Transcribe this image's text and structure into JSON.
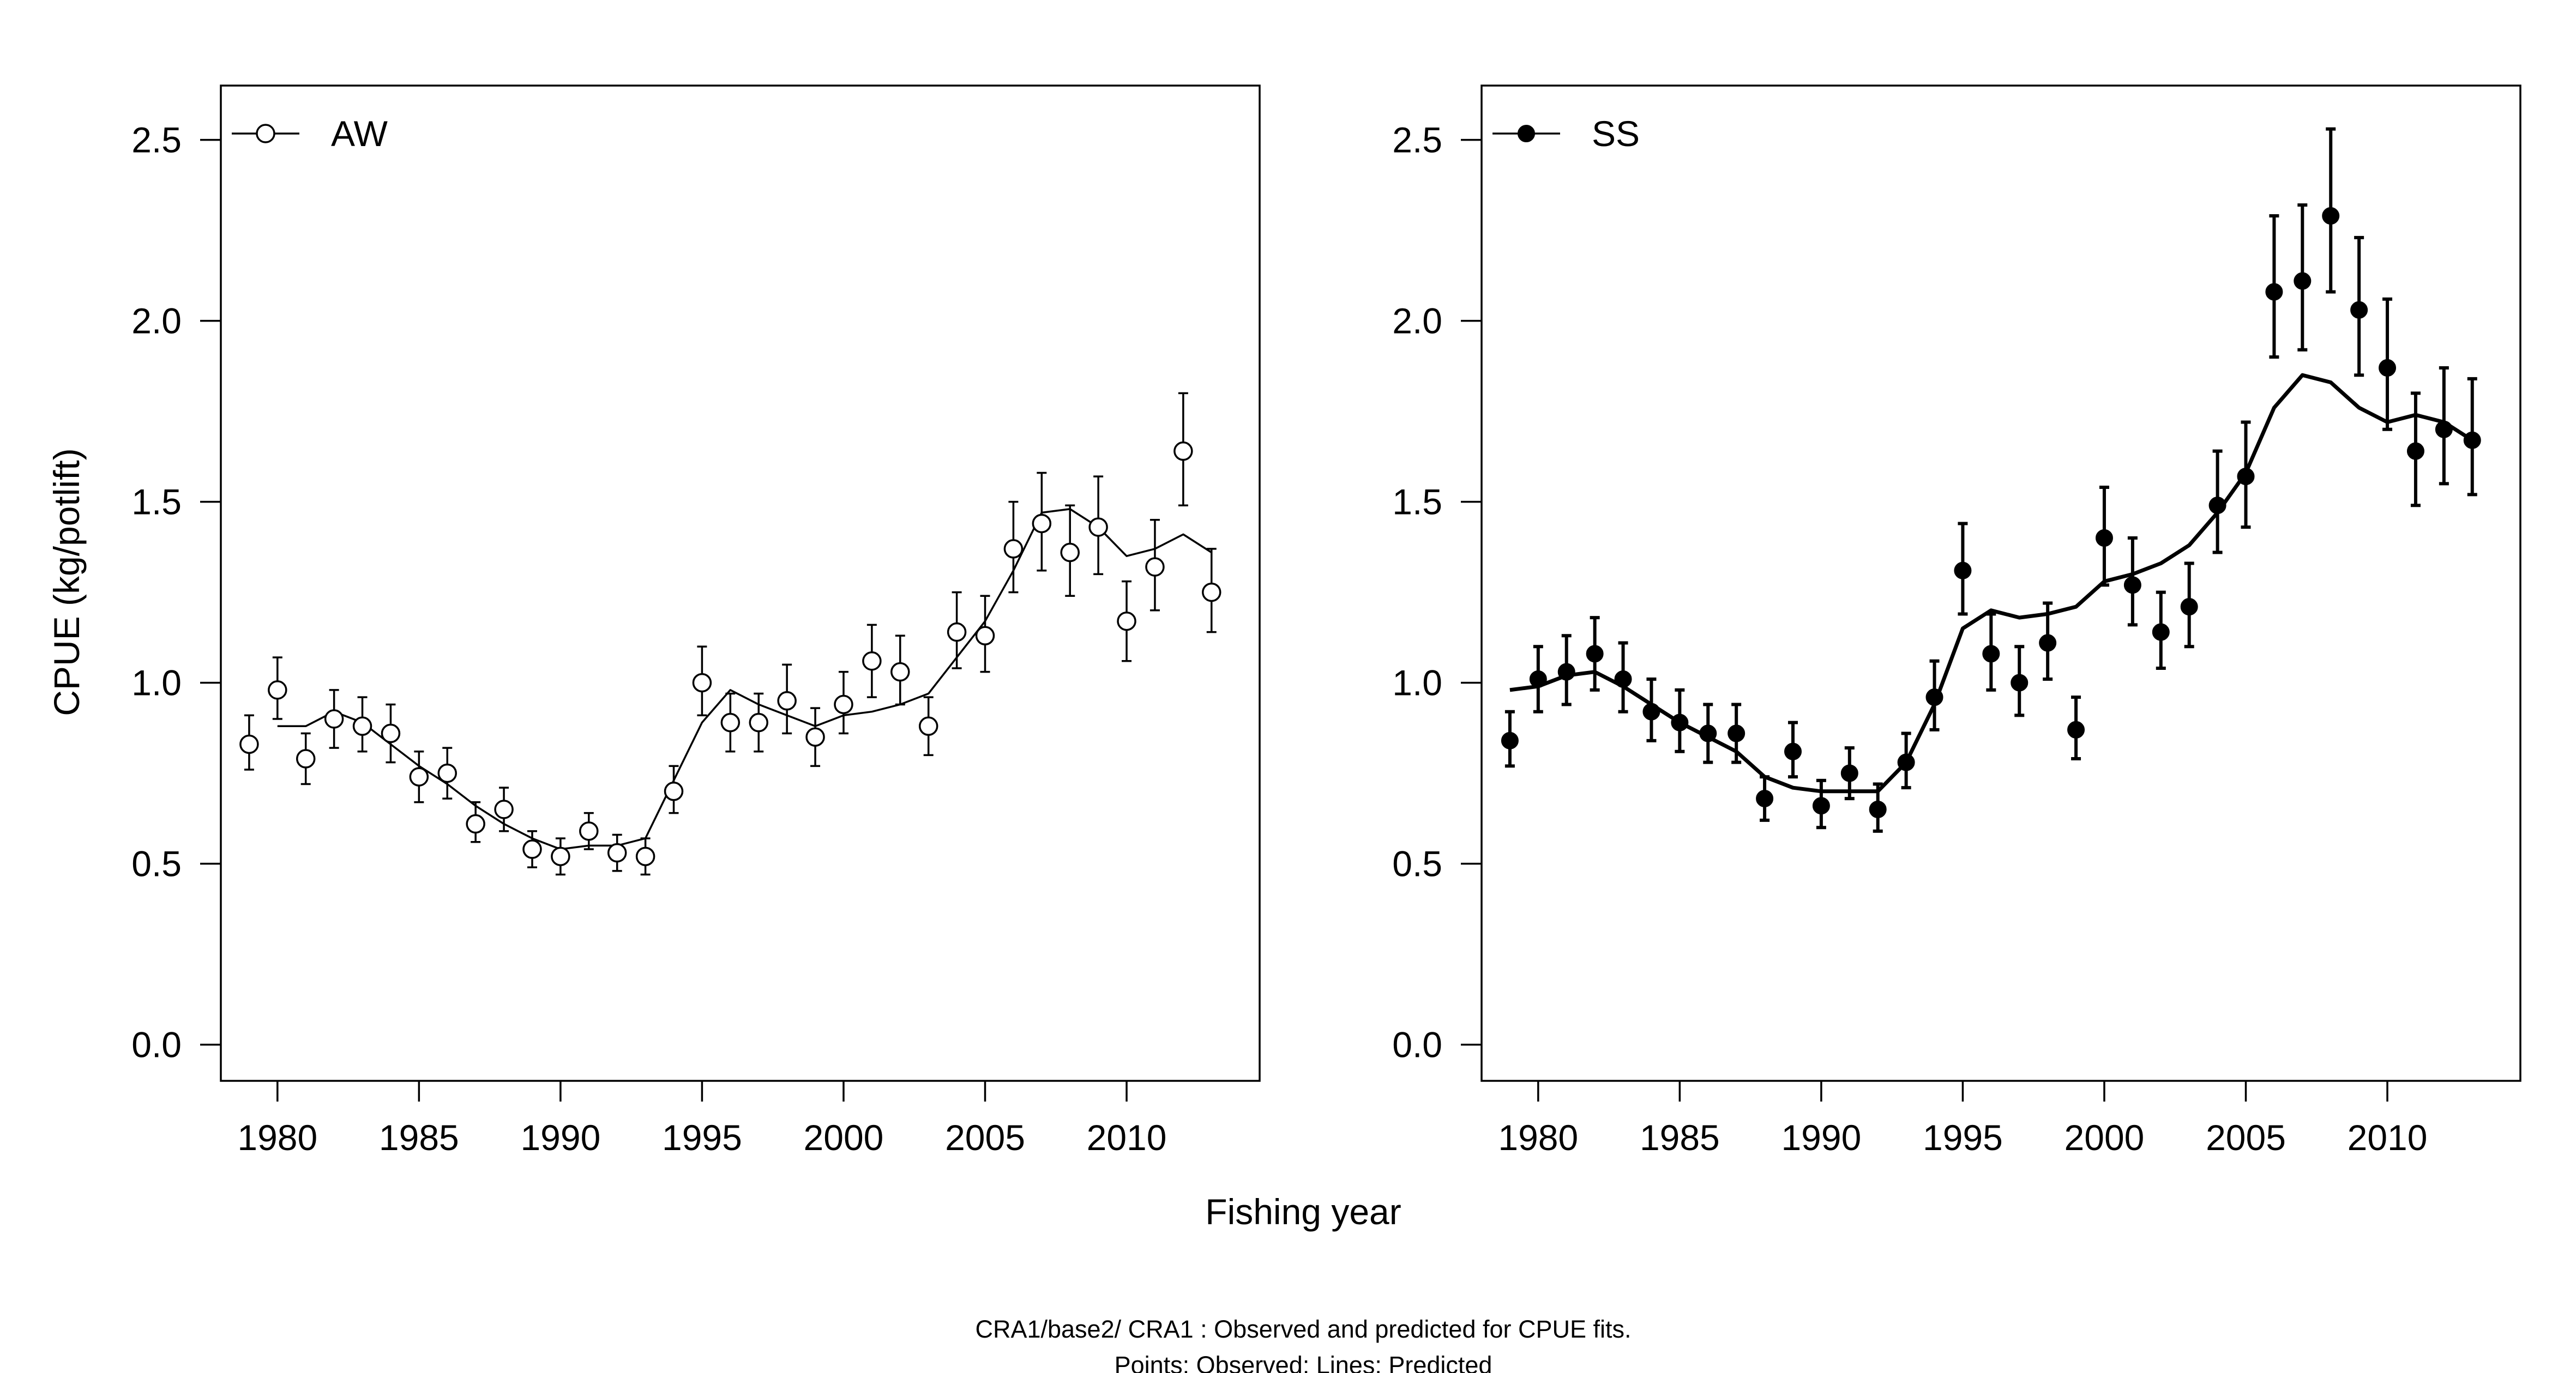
{
  "figure": {
    "xlabel": "Fishing year",
    "ylabel": "CPUE (kg/potlift)",
    "caption_line1": "CRA1/base2/   CRA1 : Observed and predicted for CPUE fits.",
    "caption_line2": "Points: Observed; Lines: Predicted"
  },
  "chart_data": [
    {
      "type": "scatter",
      "panel": "left",
      "legend": "AW",
      "legend_position": "top-left",
      "marker": "open-circle",
      "line_style": "thin",
      "xlim": [
        1978,
        2014.7
      ],
      "ylim": [
        -0.1,
        2.65
      ],
      "x_ticks": [
        1980,
        1985,
        1990,
        1995,
        2000,
        2005,
        2010
      ],
      "x_tick_labels": [
        "1980",
        "1985",
        "1990",
        "1995",
        "2000",
        "2005",
        "2010"
      ],
      "y_ticks": [
        0.0,
        0.5,
        1.0,
        1.5,
        2.0,
        2.5
      ],
      "y_tick_labels": [
        "0.0",
        "0.5",
        "1.0",
        "1.5",
        "2.0",
        "2.5"
      ],
      "x": [
        1979,
        1980,
        1981,
        1982,
        1983,
        1984,
        1985,
        1986,
        1987,
        1988,
        1989,
        1990,
        1991,
        1992,
        1993,
        1994,
        1995,
        1996,
        1997,
        1998,
        1999,
        2000,
        2001,
        2002,
        2003,
        2004,
        2005,
        2006,
        2007,
        2008,
        2009,
        2010,
        2011,
        2012,
        2013
      ],
      "observed": [
        0.83,
        0.98,
        0.79,
        0.9,
        0.88,
        0.86,
        0.74,
        0.75,
        0.61,
        0.65,
        0.54,
        0.52,
        0.59,
        0.53,
        0.52,
        0.7,
        1.0,
        0.89,
        0.89,
        0.95,
        0.85,
        0.94,
        1.06,
        1.03,
        0.88,
        1.14,
        1.13,
        1.37,
        1.44,
        1.36,
        1.43,
        1.17,
        1.32,
        1.64,
        1.25
      ],
      "err_lower": [
        0.76,
        0.9,
        0.72,
        0.82,
        0.81,
        0.78,
        0.67,
        0.68,
        0.56,
        0.59,
        0.49,
        0.47,
        0.54,
        0.48,
        0.47,
        0.64,
        0.91,
        0.81,
        0.81,
        0.86,
        0.77,
        0.86,
        0.96,
        0.94,
        0.8,
        1.04,
        1.03,
        1.25,
        1.31,
        1.24,
        1.3,
        1.06,
        1.2,
        1.49,
        1.14
      ],
      "err_upper": [
        0.91,
        1.07,
        0.86,
        0.98,
        0.96,
        0.94,
        0.81,
        0.82,
        0.67,
        0.71,
        0.59,
        0.57,
        0.64,
        0.58,
        0.57,
        0.77,
        1.1,
        0.97,
        0.97,
        1.05,
        0.93,
        1.03,
        1.16,
        1.13,
        0.96,
        1.25,
        1.24,
        1.5,
        1.58,
        1.49,
        1.57,
        1.28,
        1.45,
        1.8,
        1.37
      ],
      "predicted": [
        null,
        0.88,
        0.88,
        0.92,
        0.89,
        0.83,
        0.77,
        0.72,
        0.66,
        0.61,
        0.57,
        0.54,
        0.55,
        0.55,
        0.57,
        0.73,
        0.89,
        0.98,
        0.94,
        0.91,
        0.88,
        0.91,
        0.92,
        0.94,
        0.97,
        1.07,
        1.17,
        1.31,
        1.47,
        1.48,
        1.43,
        1.35,
        1.37,
        1.41,
        1.36
      ]
    },
    {
      "type": "scatter",
      "panel": "right",
      "legend": "SS",
      "legend_position": "top-left",
      "marker": "filled-circle",
      "line_style": "thick",
      "xlim": [
        1978,
        2014.7
      ],
      "ylim": [
        -0.1,
        2.65
      ],
      "x_ticks": [
        1980,
        1985,
        1990,
        1995,
        2000,
        2005,
        2010
      ],
      "x_tick_labels": [
        "1980",
        "1985",
        "1990",
        "1995",
        "2000",
        "2005",
        "2010"
      ],
      "y_ticks": [
        0.0,
        0.5,
        1.0,
        1.5,
        2.0,
        2.5
      ],
      "y_tick_labels": [
        "0.0",
        "0.5",
        "1.0",
        "1.5",
        "2.0",
        "2.5"
      ],
      "x": [
        1979,
        1980,
        1981,
        1982,
        1983,
        1984,
        1985,
        1986,
        1987,
        1988,
        1989,
        1990,
        1991,
        1992,
        1993,
        1994,
        1995,
        1996,
        1997,
        1998,
        1999,
        2000,
        2001,
        2002,
        2003,
        2004,
        2005,
        2006,
        2007,
        2008,
        2009,
        2010,
        2011,
        2012,
        2013
      ],
      "observed": [
        0.84,
        1.01,
        1.03,
        1.08,
        1.01,
        0.92,
        0.89,
        0.86,
        0.86,
        0.68,
        0.81,
        0.66,
        0.75,
        0.65,
        0.78,
        0.96,
        1.31,
        1.08,
        1.0,
        1.11,
        0.87,
        1.4,
        1.27,
        1.14,
        1.21,
        1.49,
        1.57,
        2.08,
        2.11,
        2.29,
        2.03,
        1.87,
        1.64,
        1.7,
        1.67
      ],
      "err_lower": [
        0.77,
        0.92,
        0.94,
        0.98,
        0.92,
        0.84,
        0.81,
        0.78,
        0.78,
        0.62,
        0.74,
        0.6,
        0.68,
        0.59,
        0.71,
        0.87,
        1.19,
        0.98,
        0.91,
        1.01,
        0.79,
        1.27,
        1.16,
        1.04,
        1.1,
        1.36,
        1.43,
        1.9,
        1.92,
        2.08,
        1.85,
        1.7,
        1.49,
        1.55,
        1.52
      ],
      "err_upper": [
        0.92,
        1.1,
        1.13,
        1.18,
        1.11,
        1.01,
        0.98,
        0.94,
        0.94,
        0.74,
        0.89,
        0.73,
        0.82,
        0.72,
        0.86,
        1.06,
        1.44,
        1.19,
        1.1,
        1.22,
        0.96,
        1.54,
        1.4,
        1.25,
        1.33,
        1.64,
        1.72,
        2.29,
        2.32,
        2.53,
        2.23,
        2.06,
        1.8,
        1.87,
        1.84
      ],
      "predicted": [
        0.98,
        0.99,
        1.02,
        1.03,
        0.99,
        0.94,
        0.89,
        0.85,
        0.81,
        0.74,
        0.71,
        0.7,
        0.7,
        0.7,
        0.78,
        0.94,
        1.15,
        1.2,
        1.18,
        1.19,
        1.21,
        1.28,
        1.3,
        1.33,
        1.38,
        1.47,
        1.58,
        1.76,
        1.85,
        1.83,
        1.76,
        1.72,
        1.74,
        1.72,
        1.67
      ]
    }
  ]
}
